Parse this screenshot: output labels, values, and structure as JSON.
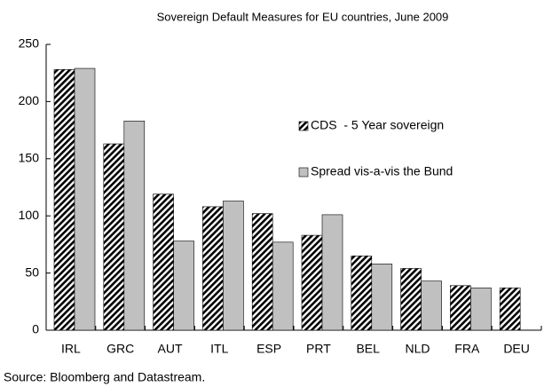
{
  "chart_data": {
    "type": "bar",
    "title": "Sovereign Default Measures for EU countries, June 2009",
    "note": "Source: Bloomberg and Datastream.",
    "categories": [
      "IRL",
      "GRC",
      "AUT",
      "ITL",
      "ESP",
      "PRT",
      "BEL",
      "NLD",
      "FRA",
      "DEU"
    ],
    "series": [
      {
        "name": "CDS  - 5 Year sovereign",
        "color": "#000000",
        "hatch": true,
        "values": [
          228,
          163,
          119,
          108,
          102,
          83,
          65,
          54,
          39,
          37
        ]
      },
      {
        "name": "Spread vis-a-vis the Bund",
        "color": "#c0c0c0",
        "hatch": false,
        "values": [
          229,
          183,
          78,
          113,
          77,
          101,
          58,
          43,
          37,
          null
        ]
      }
    ],
    "ylim": [
      0,
      250
    ],
    "yticks": [
      0,
      50,
      100,
      150,
      200,
      250
    ],
    "grid": false
  }
}
